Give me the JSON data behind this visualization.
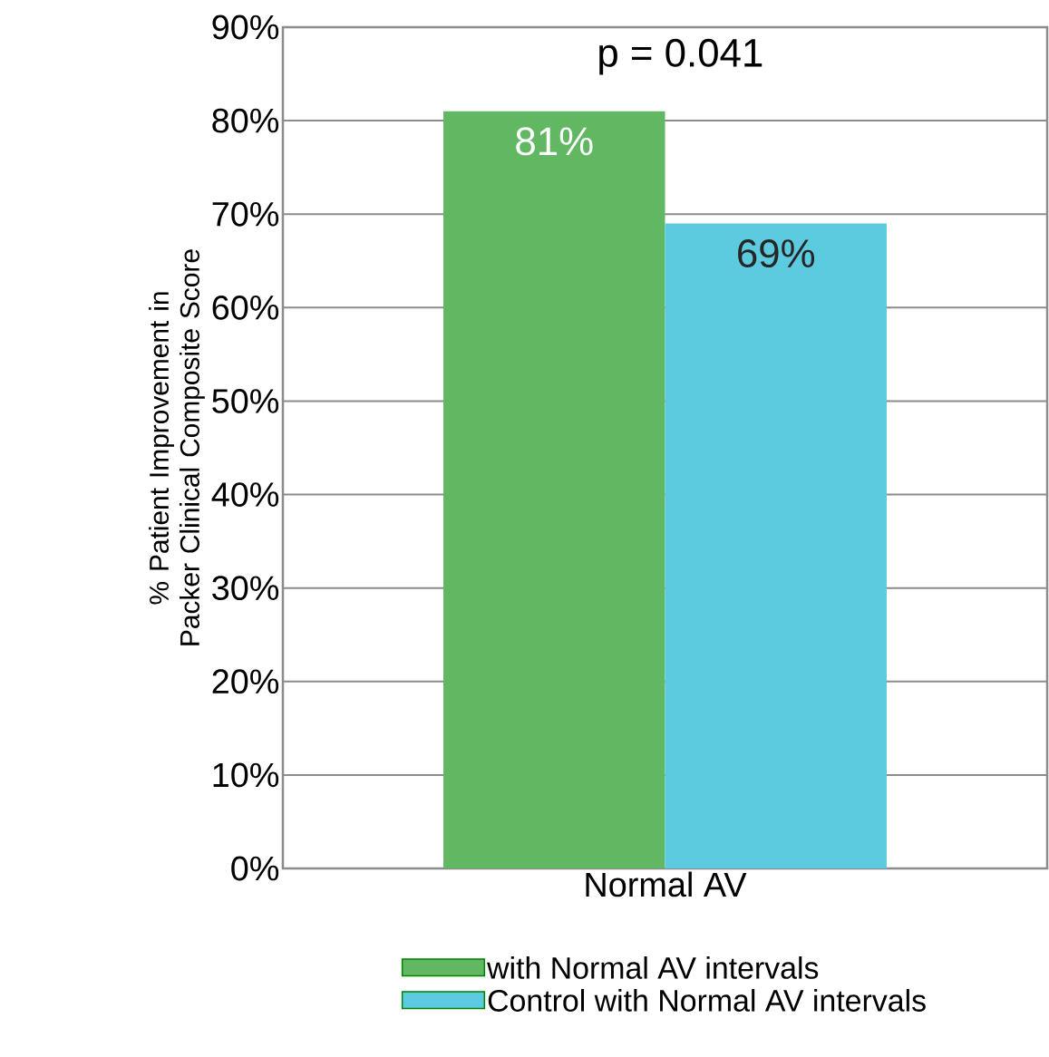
{
  "chart_data": {
    "type": "bar",
    "ylabel": "% Patient Improvement in Packer Clinical Composite Score",
    "categories": [
      "Normal AV"
    ],
    "series": [
      {
        "name": "with Normal AV intervals",
        "color": "#62b862",
        "values": [
          81
        ],
        "value_labels": [
          "81%"
        ]
      },
      {
        "name": "Control with Normal AV intervals",
        "color": "#5ccbe0",
        "values": [
          69
        ],
        "value_labels": [
          "69%"
        ]
      }
    ],
    "ylim": [
      0,
      90
    ],
    "yticks": [
      {
        "value": 0,
        "label": "0%"
      },
      {
        "value": 10,
        "label": "10%"
      },
      {
        "value": 20,
        "label": "20%"
      },
      {
        "value": 30,
        "label": "30%"
      },
      {
        "value": 40,
        "label": "40%"
      },
      {
        "value": 50,
        "label": "50%"
      },
      {
        "value": 60,
        "label": "60%"
      },
      {
        "value": 70,
        "label": "70%"
      },
      {
        "value": 80,
        "label": "80%"
      },
      {
        "value": 90,
        "label": "90%"
      }
    ],
    "grid": "y",
    "legend": "bottom",
    "annotations": [
      "p = 0.041"
    ]
  }
}
